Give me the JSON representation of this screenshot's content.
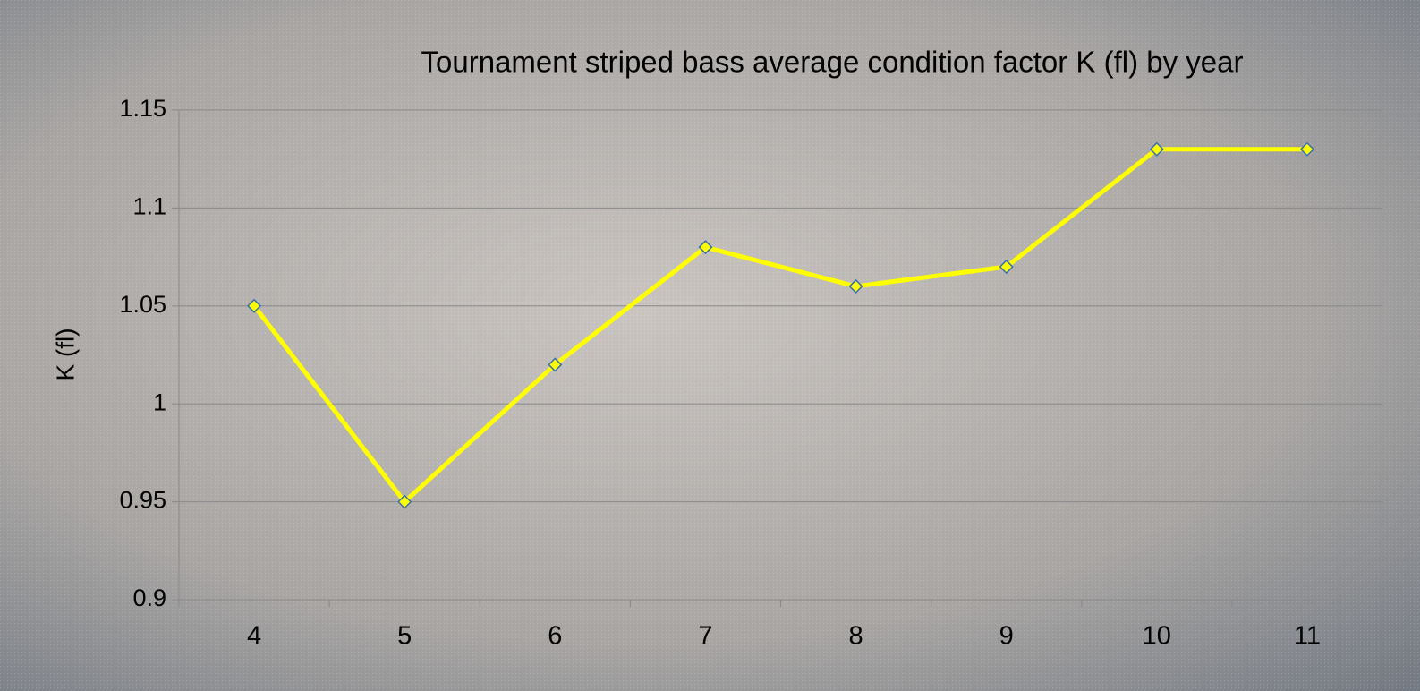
{
  "chart_data": {
    "type": "line",
    "title": "Tournament striped bass average condition factor K (fl) by year",
    "y_label": "K (fl)",
    "categories": [
      "4",
      "5",
      "6",
      "7",
      "8",
      "9",
      "10",
      "11"
    ],
    "series": [
      {
        "color": "#ffff00",
        "values": [
          1.05,
          0.95,
          1.02,
          1.08,
          1.06,
          1.07,
          1.13,
          1.13
        ]
      }
    ],
    "ylim": [
      0.9,
      1.15
    ],
    "yticks": [
      0.9,
      0.95,
      1,
      1.05,
      1.1,
      1.15
    ],
    "grid": true
  }
}
